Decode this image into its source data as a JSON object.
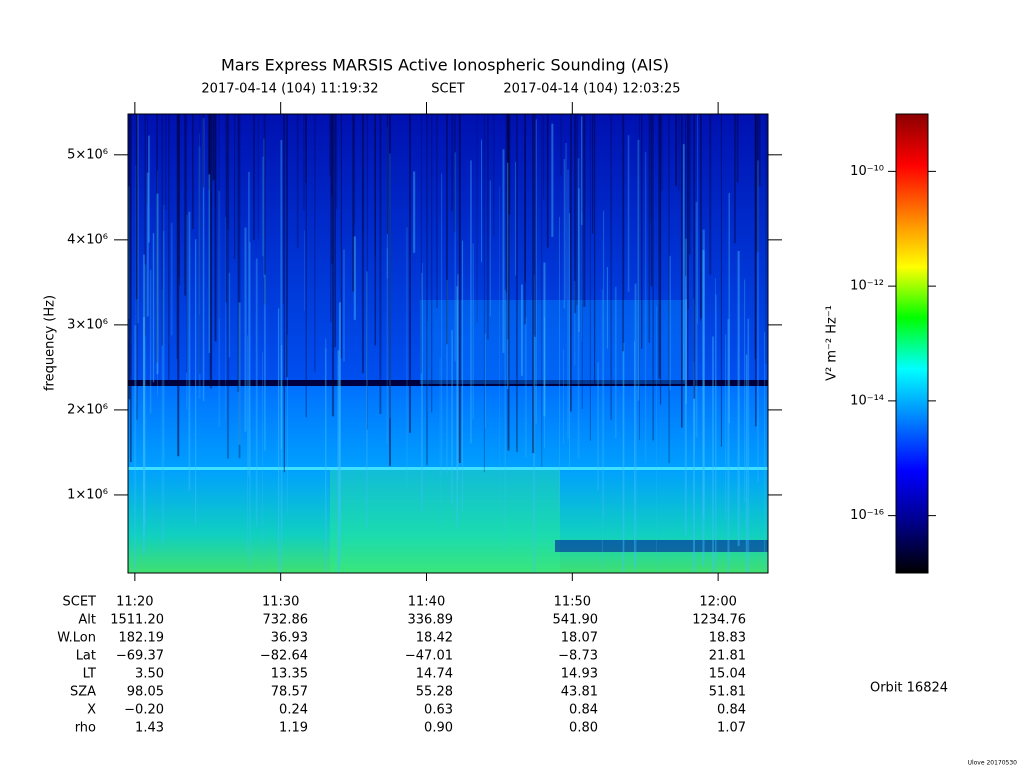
{
  "chart_data": {
    "type": "spectrogram",
    "title": "Mars Express MARSIS Active Ionospheric Sounding (AIS)",
    "start_time": "2017-04-14 (104) 11:19:32",
    "time_label": "SCET",
    "end_time": "2017-04-14 (104) 12:03:25",
    "ylabel": "frequency (Hz)",
    "ylim": [
      82000,
      5480000
    ],
    "yticks": [
      {
        "value": 1000000,
        "label": "1×10⁶"
      },
      {
        "value": 2000000,
        "label": "2×10⁶"
      },
      {
        "value": 3000000,
        "label": "3×10⁶"
      },
      {
        "value": 4000000,
        "label": "4×10⁶"
      },
      {
        "value": 5000000,
        "label": "5×10⁶"
      }
    ],
    "xlim": [
      679.53,
      723.42
    ],
    "xticks": [
      {
        "value": 680,
        "label": "11:20"
      },
      {
        "value": 690,
        "label": "11:30"
      },
      {
        "value": 700,
        "label": "11:40"
      },
      {
        "value": 710,
        "label": "11:50"
      },
      {
        "value": 720,
        "label": "12:00"
      }
    ],
    "colorbar": {
      "label": "V² m⁻² Hz⁻¹",
      "scale": "log",
      "clim": [
        1e-17,
        1e-09
      ],
      "ticks": [
        {
          "value": 1e-16,
          "label": "10⁻¹⁶"
        },
        {
          "value": 1e-14,
          "label": "10⁻¹⁴"
        },
        {
          "value": 1e-12,
          "label": "10⁻¹²"
        },
        {
          "value": 1e-10,
          "label": "10⁻¹⁰"
        }
      ],
      "colors": [
        "#000000",
        "#00008b",
        "#0000ff",
        "#0080ff",
        "#00ffff",
        "#00ff00",
        "#ffff00",
        "#ff8000",
        "#ff0000",
        "#8b0000"
      ]
    }
  },
  "ephemeris": {
    "time_label": "SCET",
    "rows": [
      {
        "label": "Alt",
        "values": [
          "1511.20",
          "732.86",
          "336.89",
          "541.90",
          "1234.76"
        ]
      },
      {
        "label": "W.Lon",
        "values": [
          "182.19",
          "36.93",
          "18.42",
          "18.07",
          "18.83"
        ]
      },
      {
        "label": "Lat",
        "values": [
          "−69.37",
          "−82.64",
          "−47.01",
          "−8.73",
          "21.81"
        ]
      },
      {
        "label": "LT",
        "values": [
          "3.50",
          "13.35",
          "14.74",
          "14.93",
          "15.04"
        ]
      },
      {
        "label": "SZA",
        "values": [
          "98.05",
          "78.57",
          "55.28",
          "43.81",
          "51.81"
        ]
      },
      {
        "label": "X",
        "values": [
          "−0.20",
          "0.24",
          "0.63",
          "0.84",
          "0.84"
        ]
      },
      {
        "label": "rho",
        "values": [
          "1.43",
          "1.19",
          "0.90",
          "0.80",
          "1.07"
        ]
      }
    ]
  },
  "orbit": "Orbit 16824",
  "footer": "Ulove 20170530"
}
